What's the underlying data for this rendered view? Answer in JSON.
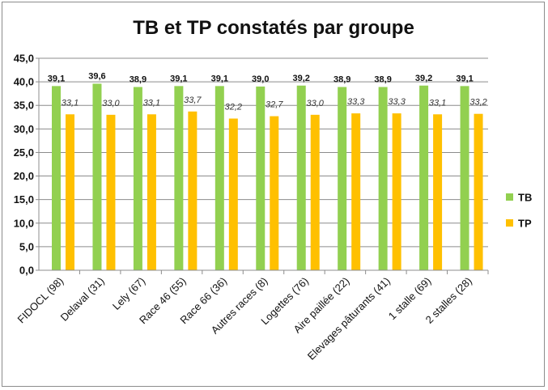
{
  "chart_data": {
    "type": "bar",
    "title": "TB et TP constatés par groupe",
    "categories": [
      "FIDOCL (98)",
      "Delaval (31)",
      "Lely (67)",
      "Race 46 (55)",
      "Race 66 (36)",
      "Autres races (8)",
      "Logettes (76)",
      "Aire paillée (22)",
      "Elevages pâturants (41)",
      "1 stalle (69)",
      "2 stalles (28)"
    ],
    "series": [
      {
        "name": "TB",
        "color": "#92d050",
        "values": [
          39.1,
          39.6,
          38.9,
          39.1,
          39.1,
          39.0,
          39.2,
          38.9,
          38.9,
          39.2,
          39.1
        ],
        "labels": [
          "39,1",
          "39,6",
          "38,9",
          "39,1",
          "39,1",
          "39,0",
          "39,2",
          "38,9",
          "38,9",
          "39,2",
          "39,1"
        ]
      },
      {
        "name": "TP",
        "color": "#ffc000",
        "values": [
          33.1,
          33.0,
          33.1,
          33.7,
          32.2,
          32.7,
          33.0,
          33.3,
          33.3,
          33.1,
          33.2
        ],
        "labels": [
          "33,1",
          "33,0",
          "33,1",
          "33,7",
          "32,2",
          "32,7",
          "33,0",
          "33,3",
          "33,3",
          "33,1",
          "33,2"
        ]
      }
    ],
    "ylim": [
      0,
      45
    ],
    "y_ticks": [
      0,
      5,
      10,
      15,
      20,
      25,
      30,
      35,
      40,
      45
    ],
    "y_tick_labels": [
      "0,0",
      "5,0",
      "10,0",
      "15,0",
      "20,0",
      "25,0",
      "30,0",
      "35,0",
      "40,0",
      "45,0"
    ],
    "grid": true,
    "legend_position": "right"
  }
}
